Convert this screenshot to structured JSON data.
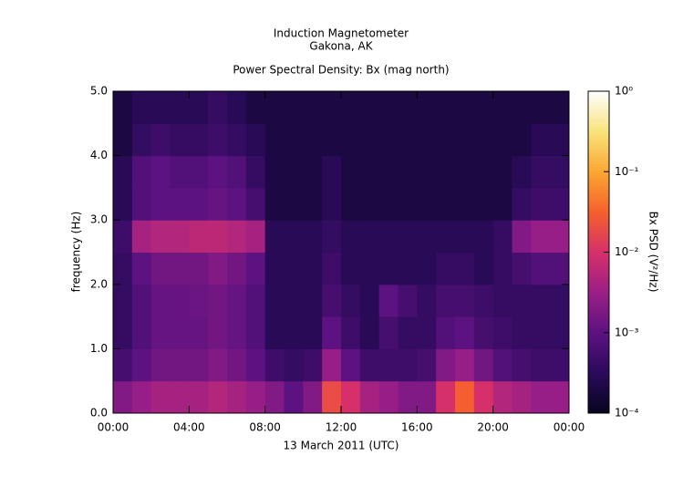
{
  "chart_data": {
    "type": "heatmap",
    "title": "Induction Magnetometer",
    "subtitle": "Gakona, AK",
    "plot_title": "Power Spectral Density: Bx (mag north)",
    "x_label": "13 March 2011 (UTC)",
    "y_label": "frequency (Hz)",
    "colorbar_label": "Bx PSD (V²/Hz)",
    "xbins": [
      0,
      1,
      2,
      3,
      4,
      5,
      6,
      7,
      8,
      9,
      10,
      11,
      12,
      13,
      14,
      15,
      16,
      17,
      18,
      19,
      20,
      21,
      22,
      23,
      24
    ],
    "ybins": [
      0,
      0.5,
      1,
      1.5,
      2,
      2.5,
      3,
      3.5,
      4,
      4.5,
      5
    ],
    "values": [
      [
        0.002,
        0.003,
        0.004,
        0.004,
        0.004,
        0.005,
        0.004,
        0.003,
        0.002,
        0.001,
        0.002,
        0.02,
        0.01,
        0.004,
        0.003,
        0.002,
        0.002,
        0.01,
        0.03,
        0.01,
        0.005,
        0.004,
        0.003,
        0.003
      ],
      [
        0.0006,
        0.001,
        0.0015,
        0.0015,
        0.0015,
        0.002,
        0.0015,
        0.001,
        0.0005,
        0.0004,
        0.0005,
        0.003,
        0.001,
        0.0005,
        0.0005,
        0.0005,
        0.0006,
        0.002,
        0.003,
        0.0015,
        0.0008,
        0.0006,
        0.0005,
        0.0005
      ],
      [
        0.0004,
        0.0008,
        0.0012,
        0.0012,
        0.0012,
        0.0015,
        0.0012,
        0.0008,
        0.0003,
        0.0003,
        0.0003,
        0.001,
        0.0005,
        0.0003,
        0.0006,
        0.0004,
        0.0004,
        0.0008,
        0.001,
        0.0006,
        0.0005,
        0.0004,
        0.0004,
        0.0004
      ],
      [
        0.0004,
        0.0008,
        0.0012,
        0.0012,
        0.0013,
        0.0015,
        0.0012,
        0.0008,
        0.0003,
        0.0003,
        0.0003,
        0.0006,
        0.0004,
        0.0003,
        0.001,
        0.0006,
        0.0004,
        0.0006,
        0.0006,
        0.0005,
        0.0004,
        0.0004,
        0.0004,
        0.0004
      ],
      [
        0.0004,
        0.001,
        0.0015,
        0.0015,
        0.0015,
        0.002,
        0.0015,
        0.001,
        0.0003,
        0.0003,
        0.0003,
        0.0005,
        0.0003,
        0.0003,
        0.0003,
        0.0003,
        0.0003,
        0.0004,
        0.0004,
        0.0003,
        0.0004,
        0.0006,
        0.0008,
        0.0008
      ],
      [
        0.0005,
        0.004,
        0.005,
        0.005,
        0.006,
        0.006,
        0.005,
        0.004,
        0.0003,
        0.0003,
        0.0003,
        0.0004,
        0.0003,
        0.0003,
        0.0003,
        0.0003,
        0.0003,
        0.0003,
        0.0003,
        0.0003,
        0.0004,
        0.002,
        0.003,
        0.003
      ],
      [
        0.0003,
        0.0008,
        0.001,
        0.001,
        0.001,
        0.0012,
        0.001,
        0.0006,
        0.0002,
        0.0002,
        0.0002,
        0.0003,
        0.0002,
        0.0002,
        0.0002,
        0.0002,
        0.0002,
        0.0002,
        0.0002,
        0.0002,
        0.0002,
        0.0004,
        0.0005,
        0.0005
      ],
      [
        0.0003,
        0.0008,
        0.001,
        0.0008,
        0.0008,
        0.001,
        0.0008,
        0.0004,
        0.0002,
        0.0002,
        0.0002,
        0.0003,
        0.0002,
        0.0002,
        0.0002,
        0.0002,
        0.0002,
        0.0002,
        0.0002,
        0.0002,
        0.0002,
        0.0003,
        0.0004,
        0.0004
      ],
      [
        0.0002,
        0.0004,
        0.0005,
        0.0004,
        0.0004,
        0.0005,
        0.0004,
        0.0003,
        0.0002,
        0.0002,
        0.0002,
        0.0002,
        0.0002,
        0.0002,
        0.0002,
        0.0002,
        0.0002,
        0.0002,
        0.0002,
        0.0002,
        0.0002,
        0.0002,
        0.0003,
        0.0003
      ],
      [
        0.0002,
        0.0003,
        0.0003,
        0.0003,
        0.0003,
        0.0004,
        0.0003,
        0.0002,
        0.0002,
        0.0002,
        0.0002,
        0.0002,
        0.0002,
        0.0002,
        0.0002,
        0.0002,
        0.0002,
        0.0002,
        0.0002,
        0.0002,
        0.0002,
        0.0002,
        0.0002,
        0.0002
      ]
    ],
    "xlim": [
      0,
      24
    ],
    "ylim": [
      0,
      5
    ],
    "xticks": [
      {
        "value": 0,
        "label": "00:00"
      },
      {
        "value": 4,
        "label": "04:00"
      },
      {
        "value": 8,
        "label": "08:00"
      },
      {
        "value": 12,
        "label": "12:00"
      },
      {
        "value": 16,
        "label": "16:00"
      },
      {
        "value": 20,
        "label": "20:00"
      },
      {
        "value": 24,
        "label": "00:00"
      }
    ],
    "yticks": [
      {
        "value": 0,
        "label": "0.0"
      },
      {
        "value": 1,
        "label": "1.0"
      },
      {
        "value": 2,
        "label": "2.0"
      },
      {
        "value": 3,
        "label": "3.0"
      },
      {
        "value": 4,
        "label": "4.0"
      },
      {
        "value": 5,
        "label": "5.0"
      }
    ],
    "clim": [
      0.0001,
      1
    ],
    "color_scale": "log",
    "cticks": [
      {
        "value": 0.0001,
        "label": "10⁻⁴"
      },
      {
        "value": 0.001,
        "label": "10⁻³"
      },
      {
        "value": 0.01,
        "label": "10⁻²"
      },
      {
        "value": 0.1,
        "label": "10⁻¹"
      },
      {
        "value": 1,
        "label": "10⁰"
      }
    ],
    "colormap": [
      "#07051e",
      "#2a0a5a",
      "#5c1280",
      "#9a1f86",
      "#d6306a",
      "#f5602d",
      "#fca632",
      "#f8e37a",
      "#ffffff"
    ]
  }
}
